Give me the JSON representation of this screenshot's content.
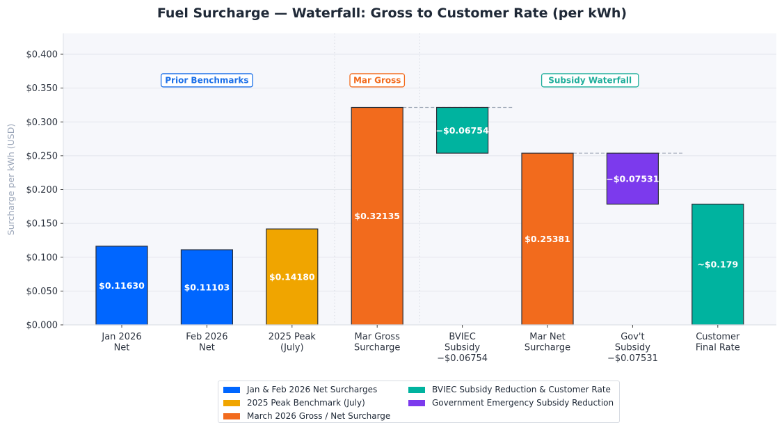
{
  "chart_data": {
    "type": "waterfall",
    "title": "Fuel Surcharge — Waterfall: Gross to Customer Rate (per kWh)",
    "xlabel": "",
    "ylabel": "Surcharge per kWh (USD)",
    "ylim": [
      0,
      0.43
    ],
    "yticks": [
      0.0,
      0.05,
      0.1,
      0.15,
      0.2,
      0.25,
      0.3,
      0.35,
      0.4
    ],
    "ytick_labels": [
      "$0.000",
      "$0.050",
      "$0.100",
      "$0.150",
      "$0.200",
      "$0.250",
      "$0.300",
      "$0.350",
      "$0.400"
    ],
    "grid": "horizontal",
    "categories": [
      [
        "Jan 2026",
        "Net"
      ],
      [
        "Feb 2026",
        "Net"
      ],
      [
        "2025 Peak",
        "(July)"
      ],
      [
        "Mar Gross",
        "Surcharge"
      ],
      [
        "BVIEC",
        "Subsidy",
        "−$0.06754"
      ],
      [
        "Mar Net",
        "Surcharge"
      ],
      [
        "Gov't",
        "Subsidy",
        "−$0.07531"
      ],
      [
        "Customer",
        "Final Rate"
      ]
    ],
    "bars": [
      {
        "bottom": 0,
        "top": 0.1163,
        "color": "#0066ff",
        "label": "$0.11630"
      },
      {
        "bottom": 0,
        "top": 0.11103,
        "color": "#0066ff",
        "label": "$0.11103"
      },
      {
        "bottom": 0,
        "top": 0.1418,
        "color": "#f0a500",
        "label": "$0.14180"
      },
      {
        "bottom": 0,
        "top": 0.32135,
        "color": "#f26b1d",
        "label": "$0.32135"
      },
      {
        "bottom": 0.25381,
        "top": 0.32135,
        "color": "#00b39f",
        "label": "−$0.06754"
      },
      {
        "bottom": 0,
        "top": 0.25381,
        "color": "#f26b1d",
        "label": "$0.25381"
      },
      {
        "bottom": 0.1785,
        "top": 0.25381,
        "color": "#7c3aed",
        "label": "−$0.07531"
      },
      {
        "bottom": 0,
        "top": 0.1785,
        "color": "#00b39f",
        "label": "~$0.179"
      }
    ],
    "connectors": [
      {
        "from": 3,
        "to": 4,
        "value": 0.32135
      },
      {
        "from": 5,
        "to": 6,
        "value": 0.25381
      }
    ],
    "section_dividers_after": [
      2,
      3
    ],
    "section_labels": [
      {
        "text": "Prior Benchmarks",
        "center_index": 1,
        "color": "#1a6fe8"
      },
      {
        "text": "Mar Gross",
        "center_index": 3,
        "color": "#f26b1d"
      },
      {
        "text": "Subsidy Waterfall",
        "center_index": 5.5,
        "color": "#1fae9b"
      }
    ],
    "section_label_y": 0.362,
    "legend": {
      "placement": "bottom-center",
      "entries": [
        {
          "label": "Jan & Feb 2026 Net Surcharges",
          "color": "#0066ff"
        },
        {
          "label": "2025 Peak Benchmark (July)",
          "color": "#f0a500"
        },
        {
          "label": "March 2026 Gross / Net Surcharge",
          "color": "#f26b1d"
        },
        {
          "label": "BVIEC Subsidy Reduction & Customer Rate",
          "color": "#00b39f"
        },
        {
          "label": "Government Emergency Subsidy Reduction",
          "color": "#7c3aed"
        }
      ]
    }
  }
}
